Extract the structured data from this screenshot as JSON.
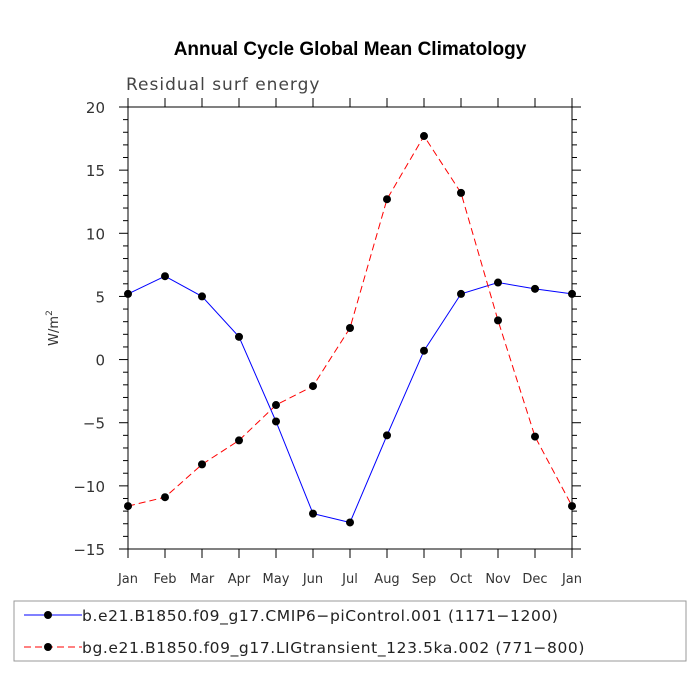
{
  "chart_data": {
    "type": "line",
    "title": "Annual Cycle Global Mean Climatology",
    "subtitle": "Residual surf energy",
    "xlabel": "",
    "ylabel": "W/m",
    "ylabel_sup": "2",
    "ylim": [
      -15,
      20
    ],
    "yticks": [
      -15,
      -10,
      -5,
      0,
      5,
      10,
      15,
      20
    ],
    "ytick_labels": [
      "−15",
      "−10",
      "−5",
      "0",
      "5",
      "10",
      "15",
      "20"
    ],
    "categories": [
      "Jan",
      "Feb",
      "Mar",
      "Apr",
      "May",
      "Jun",
      "Jul",
      "Aug",
      "Sep",
      "Oct",
      "Nov",
      "Dec",
      "Jan"
    ],
    "legend_position": "bottom",
    "series": [
      {
        "name": "b.e21.B1850.f09_g17.CMIP6−piControl.001 (1171−1200)",
        "color": "#0000ff",
        "style": "solid",
        "values": [
          5.2,
          6.6,
          5.0,
          1.8,
          -4.9,
          -12.2,
          -12.9,
          -6.0,
          0.7,
          5.2,
          6.1,
          5.6,
          5.2
        ]
      },
      {
        "name": "bg.e21.B1850.f09_g17.LIGtransient_123.5ka.002 (771−800)",
        "color": "#ff0000",
        "style": "dashed",
        "values": [
          -11.6,
          -10.9,
          -8.3,
          -6.4,
          -3.6,
          -2.1,
          2.5,
          12.7,
          17.7,
          13.2,
          3.1,
          -6.1,
          -11.6
        ]
      }
    ]
  }
}
